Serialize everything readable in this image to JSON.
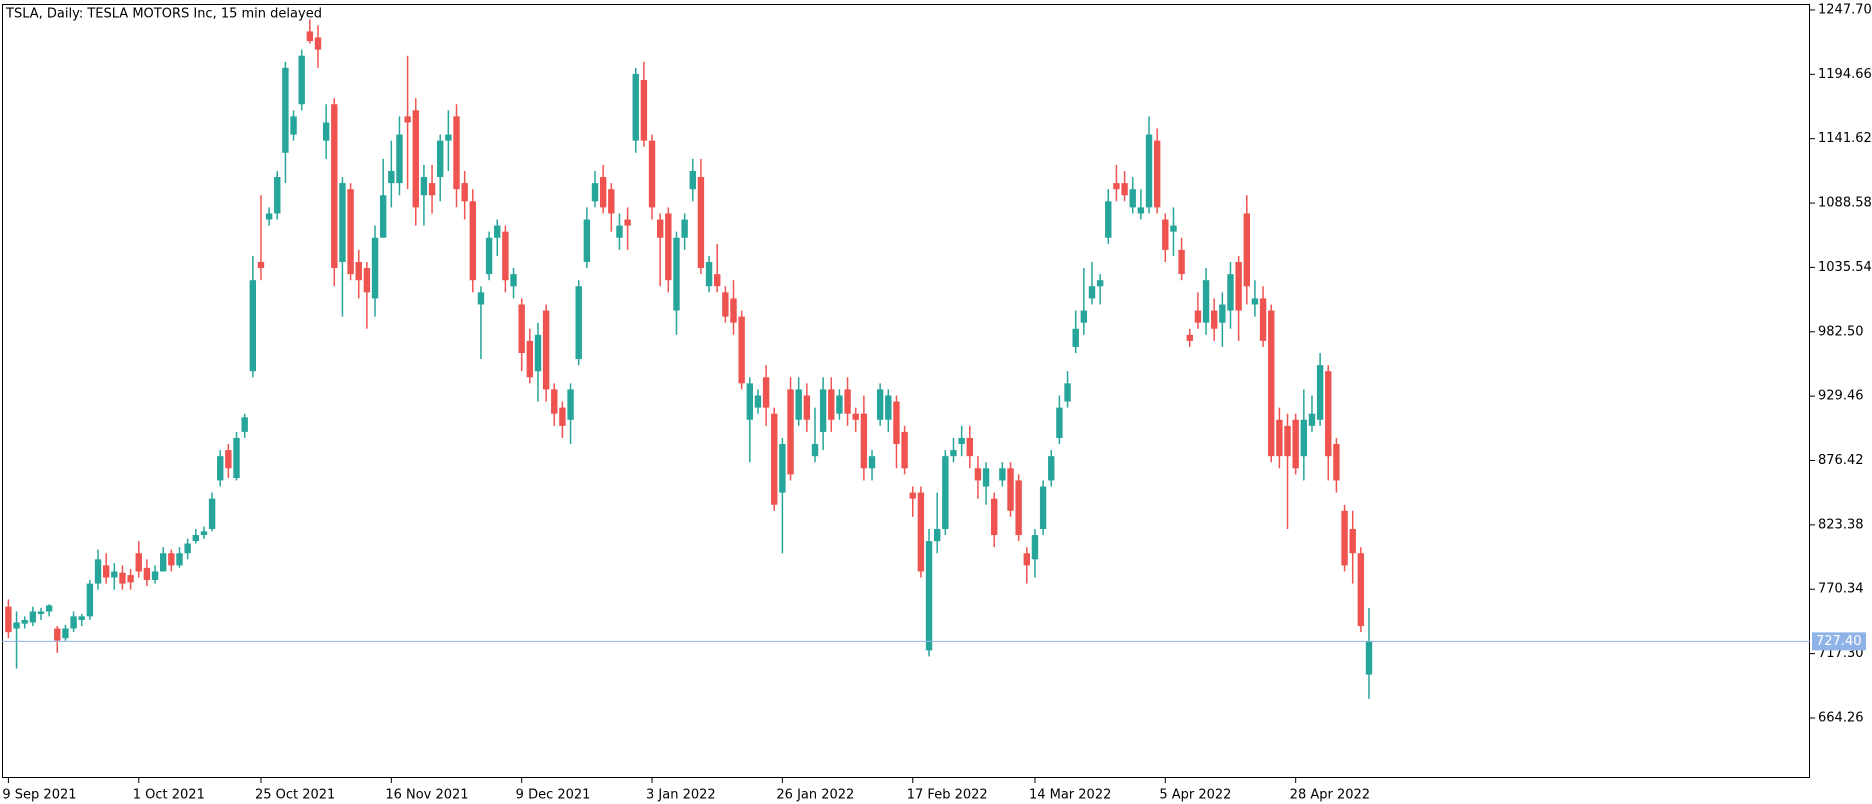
{
  "chart_data": {
    "type": "candlestick",
    "title": "TSLA, Daily:  TESLA MOTORS Inc, 15 min delayed",
    "up_color": "#26a69a",
    "down_color": "#ef5350",
    "ylim": [
      614.8,
      1252.6
    ],
    "yticks": [
      664.26,
      {
        "value": 717.3,
        "label": "717.30"
      },
      770.34,
      823.38,
      876.42,
      929.46,
      {
        "value": 982.5,
        "label": "982.50"
      },
      1035.54,
      1088.58,
      1141.62,
      1194.66,
      {
        "value": 1247.7,
        "label": "1247.70"
      }
    ],
    "price_line": {
      "value": 727.4,
      "label": "727.40",
      "color": "#8fb3e6"
    },
    "categories": [
      "9 Sep 2021",
      null,
      null,
      null,
      null,
      null,
      null,
      null,
      null,
      null,
      null,
      null,
      null,
      null,
      null,
      null,
      "1 Oct 2021",
      null,
      null,
      null,
      null,
      null,
      null,
      null,
      null,
      null,
      null,
      null,
      null,
      null,
      null,
      "25 Oct 2021",
      null,
      null,
      null,
      null,
      null,
      null,
      null,
      null,
      null,
      null,
      null,
      null,
      null,
      null,
      null,
      "16 Nov 2021",
      null,
      null,
      null,
      null,
      null,
      null,
      null,
      null,
      null,
      null,
      null,
      null,
      null,
      null,
      null,
      "9 Dec 2021",
      null,
      null,
      null,
      null,
      null,
      null,
      null,
      null,
      null,
      null,
      null,
      null,
      null,
      null,
      null,
      "3 Jan 2022",
      null,
      null,
      null,
      null,
      null,
      null,
      null,
      null,
      null,
      null,
      null,
      null,
      null,
      null,
      null,
      "26 Jan 2022",
      null,
      null,
      null,
      null,
      null,
      null,
      null,
      null,
      null,
      null,
      null,
      null,
      null,
      null,
      null,
      "17 Feb 2022",
      null,
      null,
      null,
      null,
      null,
      null,
      null,
      null,
      null,
      null,
      null,
      null,
      null,
      null,
      "14 Mar 2022",
      null,
      null,
      null,
      null,
      null,
      null,
      null,
      null,
      null,
      null,
      null,
      null,
      null,
      null,
      null,
      "5 Apr 2022",
      null,
      null,
      null,
      null,
      null,
      null,
      null,
      null,
      null,
      null,
      null,
      null,
      null,
      null,
      null,
      "28 Apr 2022",
      null,
      null,
      null,
      null,
      null,
      null,
      null,
      null,
      null
    ],
    "ohlc": [
      [
        756,
        762,
        730,
        735
      ],
      [
        738,
        752,
        705,
        743
      ],
      [
        742,
        748,
        738,
        745
      ],
      [
        743,
        756,
        740,
        752
      ],
      [
        750,
        755,
        745,
        752
      ],
      [
        752,
        758,
        748,
        757
      ],
      [
        738,
        740,
        718,
        728
      ],
      [
        730,
        741,
        728,
        738
      ],
      [
        738,
        752,
        735,
        748
      ],
      [
        745,
        750,
        740,
        748
      ],
      [
        748,
        778,
        745,
        775
      ],
      [
        775,
        803,
        770,
        795
      ],
      [
        790,
        800,
        775,
        780
      ],
      [
        780,
        792,
        770,
        785
      ],
      [
        784,
        790,
        770,
        775
      ],
      [
        782,
        787,
        770,
        776
      ],
      [
        800,
        810,
        780,
        785
      ],
      [
        788,
        795,
        773,
        778
      ],
      [
        778,
        790,
        775,
        785
      ],
      [
        785,
        805,
        785,
        800
      ],
      [
        800,
        803,
        785,
        790
      ],
      [
        790,
        805,
        788,
        800
      ],
      [
        800,
        812,
        795,
        808
      ],
      [
        810,
        820,
        808,
        815
      ],
      [
        815,
        822,
        812,
        818
      ],
      [
        820,
        850,
        818,
        845
      ],
      [
        860,
        885,
        855,
        880
      ],
      [
        885,
        890,
        862,
        870
      ],
      [
        862,
        900,
        860,
        895
      ],
      [
        900,
        915,
        895,
        912
      ],
      [
        950,
        1045,
        945,
        1025
      ],
      [
        1040,
        1095,
        1025,
        1035
      ],
      [
        1075,
        1085,
        1070,
        1080
      ],
      [
        1080,
        1115,
        1075,
        1110
      ],
      [
        1130,
        1205,
        1105,
        1200
      ],
      [
        1145,
        1165,
        1140,
        1160
      ],
      [
        1170,
        1215,
        1165,
        1210
      ],
      [
        1230,
        1240,
        1220,
        1222
      ],
      [
        1225,
        1235,
        1200,
        1215
      ],
      [
        1140,
        1170,
        1125,
        1155
      ],
      [
        1170,
        1175,
        1020,
        1035
      ],
      [
        1040,
        1110,
        995,
        1105
      ],
      [
        1100,
        1105,
        1025,
        1030
      ],
      [
        1040,
        1050,
        1010,
        1025
      ],
      [
        1035,
        1040,
        985,
        1015
      ],
      [
        1010,
        1070,
        995,
        1060
      ],
      [
        1060,
        1125,
        1060,
        1095
      ],
      [
        1105,
        1140,
        1085,
        1115
      ],
      [
        1105,
        1160,
        1095,
        1145
      ],
      [
        1160,
        1210,
        1100,
        1155
      ],
      [
        1165,
        1175,
        1070,
        1085
      ],
      [
        1095,
        1120,
        1070,
        1110
      ],
      [
        1105,
        1120,
        1080,
        1095
      ],
      [
        1110,
        1145,
        1090,
        1140
      ],
      [
        1140,
        1165,
        1115,
        1145
      ],
      [
        1160,
        1170,
        1085,
        1100
      ],
      [
        1105,
        1115,
        1075,
        1090
      ],
      [
        1090,
        1100,
        1015,
        1025
      ],
      [
        1005,
        1020,
        960,
        1015
      ],
      [
        1030,
        1065,
        1025,
        1060
      ],
      [
        1060,
        1075,
        1045,
        1070
      ],
      [
        1065,
        1070,
        1015,
        1025
      ],
      [
        1020,
        1035,
        1010,
        1030
      ],
      [
        1005,
        1010,
        950,
        965
      ],
      [
        975,
        985,
        940,
        945
      ],
      [
        950,
        990,
        925,
        980
      ],
      [
        1000,
        1005,
        925,
        935
      ],
      [
        935,
        940,
        905,
        915
      ],
      [
        920,
        925,
        895,
        905
      ],
      [
        910,
        940,
        890,
        935
      ],
      [
        960,
        1025,
        955,
        1020
      ],
      [
        1040,
        1085,
        1035,
        1075
      ],
      [
        1090,
        1115,
        1085,
        1105
      ],
      [
        1110,
        1120,
        1080,
        1085
      ],
      [
        1100,
        1105,
        1065,
        1080
      ],
      [
        1060,
        1080,
        1050,
        1070
      ],
      [
        1075,
        1085,
        1050,
        1070
      ],
      [
        1140,
        1200,
        1130,
        1195
      ],
      [
        1190,
        1205,
        1135,
        1140
      ],
      [
        1140,
        1145,
        1075,
        1085
      ],
      [
        1075,
        1080,
        1020,
        1060
      ],
      [
        1080,
        1085,
        1015,
        1025
      ],
      [
        1000,
        1065,
        980,
        1060
      ],
      [
        1060,
        1080,
        1050,
        1075
      ],
      [
        1100,
        1125,
        1090,
        1115
      ],
      [
        1110,
        1125,
        1030,
        1035
      ],
      [
        1020,
        1045,
        1015,
        1040
      ],
      [
        1030,
        1055,
        1015,
        1020
      ],
      [
        1015,
        1020,
        990,
        995
      ],
      [
        1010,
        1025,
        980,
        990
      ],
      [
        995,
        1000,
        935,
        940
      ],
      [
        910,
        945,
        875,
        940
      ],
      [
        920,
        935,
        915,
        930
      ],
      [
        945,
        955,
        905,
        920
      ],
      [
        915,
        920,
        835,
        840
      ],
      [
        850,
        895,
        800,
        890
      ],
      [
        935,
        945,
        860,
        865
      ],
      [
        910,
        945,
        905,
        935
      ],
      [
        930,
        940,
        900,
        910
      ],
      [
        880,
        920,
        875,
        890
      ],
      [
        900,
        945,
        885,
        935
      ],
      [
        935,
        945,
        900,
        910
      ],
      [
        915,
        935,
        910,
        930
      ],
      [
        935,
        945,
        905,
        915
      ],
      [
        915,
        920,
        900,
        910
      ],
      [
        915,
        930,
        860,
        870
      ],
      [
        870,
        885,
        860,
        880
      ],
      [
        910,
        940,
        905,
        935
      ],
      [
        910,
        935,
        900,
        930
      ],
      [
        925,
        930,
        870,
        890
      ],
      [
        900,
        905,
        865,
        870
      ],
      [
        850,
        855,
        830,
        845
      ],
      [
        850,
        855,
        780,
        785
      ],
      [
        720,
        820,
        715,
        810
      ],
      [
        810,
        850,
        800,
        820
      ],
      [
        820,
        885,
        815,
        880
      ],
      [
        880,
        895,
        875,
        885
      ],
      [
        890,
        905,
        880,
        895
      ],
      [
        895,
        905,
        870,
        880
      ],
      [
        870,
        880,
        845,
        860
      ],
      [
        855,
        875,
        840,
        870
      ],
      [
        845,
        850,
        805,
        815
      ],
      [
        860,
        875,
        855,
        870
      ],
      [
        870,
        875,
        830,
        835
      ],
      [
        860,
        865,
        810,
        815
      ],
      [
        800,
        805,
        775,
        790
      ],
      [
        795,
        820,
        780,
        815
      ],
      [
        820,
        860,
        815,
        855
      ],
      [
        860,
        885,
        855,
        880
      ],
      [
        895,
        930,
        890,
        920
      ],
      [
        925,
        950,
        920,
        940
      ],
      [
        970,
        1000,
        965,
        985
      ],
      [
        990,
        1035,
        980,
        1000
      ],
      [
        1010,
        1040,
        1005,
        1020
      ],
      [
        1020,
        1030,
        1005,
        1025
      ],
      [
        1060,
        1100,
        1055,
        1090
      ],
      [
        1105,
        1120,
        1090,
        1100
      ],
      [
        1105,
        1115,
        1090,
        1095
      ],
      [
        1085,
        1110,
        1080,
        1100
      ],
      [
        1080,
        1100,
        1075,
        1085
      ],
      [
        1085,
        1160,
        1080,
        1145
      ],
      [
        1140,
        1150,
        1080,
        1085
      ],
      [
        1075,
        1080,
        1040,
        1050
      ],
      [
        1065,
        1085,
        1045,
        1070
      ],
      [
        1050,
        1060,
        1025,
        1030
      ],
      [
        980,
        985,
        970,
        975
      ],
      [
        1000,
        1015,
        985,
        990
      ],
      [
        990,
        1035,
        980,
        1025
      ],
      [
        1000,
        1010,
        975,
        985
      ],
      [
        990,
        1015,
        970,
        1005
      ],
      [
        1000,
        1040,
        985,
        1030
      ],
      [
        1040,
        1045,
        975,
        1000
      ],
      [
        1080,
        1095,
        1005,
        1020
      ],
      [
        1005,
        1025,
        995,
        1010
      ],
      [
        1010,
        1020,
        970,
        975
      ],
      [
        1000,
        1005,
        875,
        880
      ],
      [
        910,
        920,
        870,
        880
      ],
      [
        905,
        915,
        820,
        880
      ],
      [
        910,
        915,
        865,
        870
      ],
      [
        880,
        935,
        860,
        910
      ],
      [
        905,
        930,
        900,
        915
      ],
      [
        910,
        965,
        905,
        955
      ],
      [
        950,
        955,
        860,
        880
      ],
      [
        890,
        895,
        850,
        860
      ],
      [
        835,
        840,
        785,
        790
      ],
      [
        820,
        835,
        775,
        800
      ],
      [
        800,
        805,
        735,
        740
      ],
      [
        700,
        755,
        680,
        727.4
      ]
    ]
  }
}
